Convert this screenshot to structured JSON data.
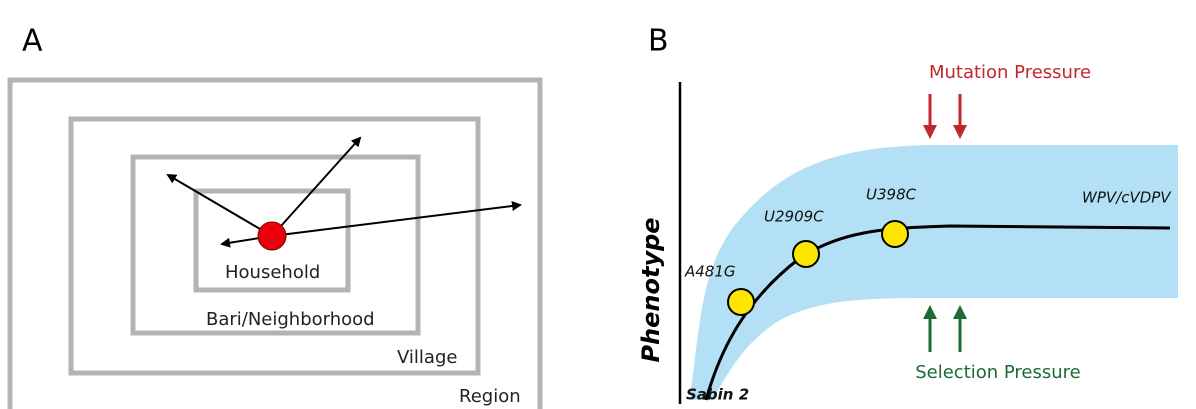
{
  "panel_a": {
    "label": "A",
    "levels": [
      "Household",
      "Bari/Neighborhood",
      "Village",
      "Region"
    ]
  },
  "panel_b": {
    "label": "B",
    "axis_label": "Phenotype",
    "start_label": "Sabin 2",
    "end_label": "WPV/cVDPV",
    "mutations": [
      "A481G",
      "U2909C",
      "U398C"
    ],
    "top_pressure": "Mutation Pressure",
    "bottom_pressure": "Selection Pressure"
  }
}
